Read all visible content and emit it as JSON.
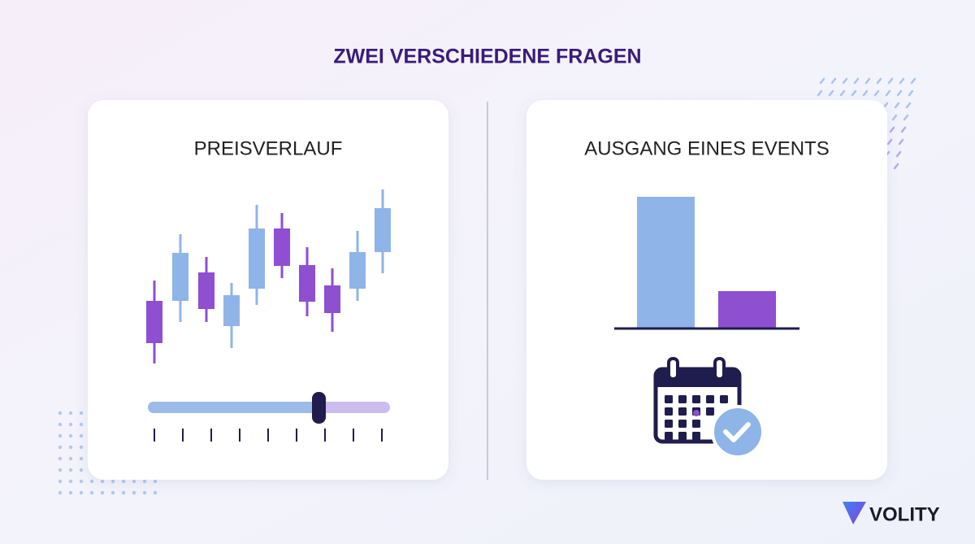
{
  "title": "ZWEI VERSCHIEDENE FRAGEN",
  "cards": [
    {
      "title": "PREISVERLAUF"
    },
    {
      "title": "AUSGANG EINES EVENTS"
    }
  ],
  "logo": {
    "text": "VOLITY"
  }
}
